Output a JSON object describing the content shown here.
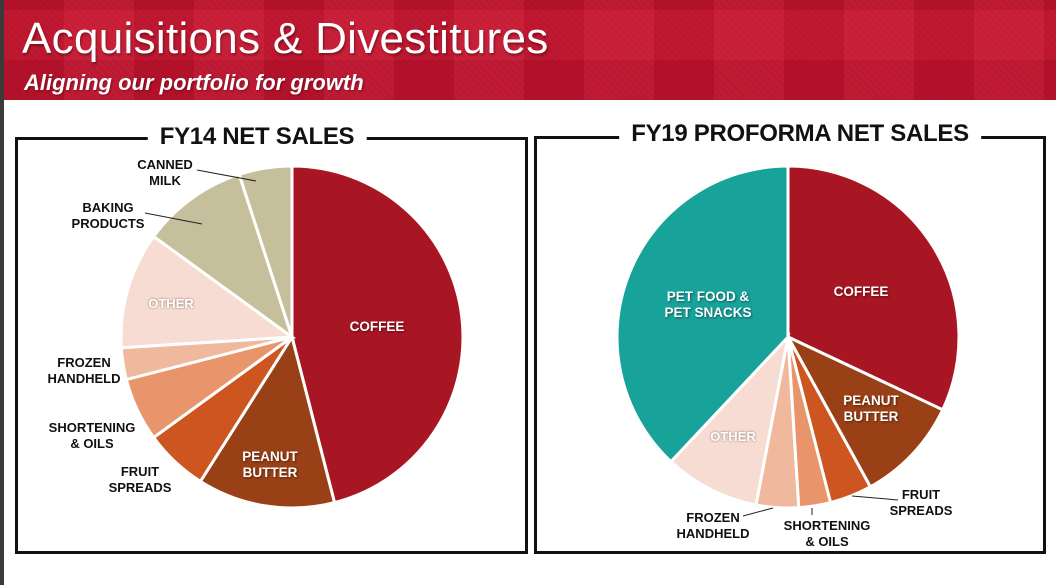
{
  "header": {
    "title": "Acquisitions & Divestitures",
    "subtitle": "Aligning our portfolio for growth"
  },
  "chart_data": [
    {
      "type": "pie",
      "title": "FY14 NET SALES",
      "unit": "percent of net sales (estimated)",
      "slices": [
        {
          "label": "COFFEE",
          "value": 46,
          "color": "#a81624"
        },
        {
          "label": "PEANUT BUTTER",
          "value": 13,
          "color": "#9a4016"
        },
        {
          "label": "FRUIT SPREADS",
          "value": 6,
          "color": "#cc5520"
        },
        {
          "label": "SHORTENING & OILS",
          "value": 6,
          "color": "#e8956c"
        },
        {
          "label": "FROZEN HANDHELD",
          "value": 3,
          "color": "#f0b89c"
        },
        {
          "label": "OTHER",
          "value": 11,
          "color": "#f6dcd2"
        },
        {
          "label": "BAKING PRODUCTS",
          "value": 10,
          "color": "#c6bf9b"
        },
        {
          "label": "CANNED MILK",
          "value": 5,
          "color": "#c6bf9b"
        }
      ]
    },
    {
      "type": "pie",
      "title": "FY19 PROFORMA NET SALES",
      "unit": "percent of net sales (estimated)",
      "slices": [
        {
          "label": "COFFEE",
          "value": 32,
          "color": "#a81624"
        },
        {
          "label": "PEANUT BUTTER",
          "value": 10,
          "color": "#9a4016"
        },
        {
          "label": "FRUIT SPREADS",
          "value": 4,
          "color": "#cc5520"
        },
        {
          "label": "SHORTENING & OILS",
          "value": 3,
          "color": "#e8956c"
        },
        {
          "label": "FROZEN HANDHELD",
          "value": 4,
          "color": "#f0b89c"
        },
        {
          "label": "OTHER",
          "value": 9,
          "color": "#f6dcd2"
        },
        {
          "label": "PET FOOD & PET SNACKS",
          "value": 38,
          "color": "#17a39a"
        }
      ]
    }
  ],
  "labels": {
    "fy14": [
      "COFFEE",
      "PEANUT\nBUTTER",
      "FRUIT\nSPREADS",
      "SHORTENING\n& OILS",
      "FROZEN\nHANDHELD",
      "OTHER",
      "BAKING\nPRODUCTS",
      "CANNED\nMILK"
    ],
    "fy19": [
      "COFFEE",
      "PEANUT\nBUTTER",
      "FRUIT\nSPREADS",
      "SHORTENING\n& OILS",
      "FROZEN\nHANDHELD",
      "OTHER",
      "PET FOOD &\nPET SNACKS"
    ]
  }
}
